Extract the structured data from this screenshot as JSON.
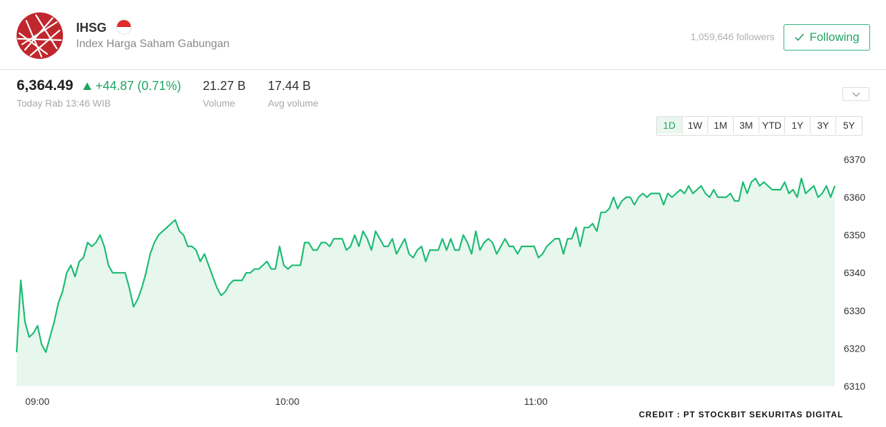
{
  "header": {
    "ticker": "IHSG",
    "flag": "indonesia-flag",
    "company_name": "Index Harga Saham Gabungan",
    "followers": "1,059,646 followers",
    "follow_button": "Following"
  },
  "quote": {
    "price": "6,364.49",
    "change": "+44.87 (0.71%)",
    "timestamp": "Today Rab 13:46 WIB",
    "volume_value": "21.27 B",
    "volume_label": "Volume",
    "avg_volume_value": "17.44 B",
    "avg_volume_label": "Avg volume"
  },
  "ranges": [
    "1D",
    "1W",
    "1M",
    "3M",
    "YTD",
    "1Y",
    "3Y",
    "5Y"
  ],
  "active_range": "1D",
  "credit": "CREDIT : PT STOCKBIT SEKURITAS DIGITAL",
  "colors": {
    "line": "#1dbb72",
    "fill": "#e7f7ee",
    "positive": "#1fa463",
    "logo": "#c0272d"
  },
  "chart_data": {
    "type": "area",
    "title": "",
    "xlabel": "",
    "ylabel": "",
    "xticks": [
      "09:00",
      "10:00",
      "11:00"
    ],
    "yticks": [
      6310,
      6320,
      6330,
      6340,
      6350,
      6360,
      6370
    ],
    "ylim": [
      6310,
      6373
    ],
    "x_start": "08:58",
    "x_end": "12:16",
    "grid": false,
    "y_axis_side": "right",
    "series": [
      {
        "values": [
          6319,
          6338,
          6327,
          6323,
          6324,
          6326,
          6321,
          6319,
          6323,
          6327,
          6332,
          6335,
          6340,
          6342,
          6339,
          6343,
          6344,
          6348,
          6347,
          6348,
          6350,
          6347,
          6342,
          6340,
          6340,
          6340,
          6340,
          6336,
          6331,
          6333,
          6336,
          6340,
          6345,
          6348,
          6350,
          6351,
          6352,
          6353,
          6354,
          6351,
          6350,
          6347,
          6347,
          6346,
          6343,
          6345,
          6342,
          6339,
          6336,
          6334,
          6335,
          6337,
          6338,
          6338,
          6338,
          6340,
          6340,
          6341,
          6341,
          6342,
          6343,
          6341,
          6341,
          6347,
          6342,
          6341,
          6342,
          6342,
          6342,
          6348,
          6348,
          6346,
          6346,
          6348,
          6348,
          6347,
          6349,
          6349,
          6349,
          6346,
          6347,
          6350,
          6347,
          6351,
          6349,
          6346,
          6351,
          6349,
          6347,
          6347,
          6349,
          6345,
          6347,
          6349,
          6345,
          6344,
          6346,
          6347,
          6343,
          6346,
          6346,
          6346,
          6349,
          6346,
          6349,
          6346,
          6346,
          6350,
          6348,
          6345,
          6351,
          6346,
          6348,
          6349,
          6348,
          6345,
          6347,
          6349,
          6347,
          6347,
          6345,
          6347,
          6347,
          6347,
          6347,
          6344,
          6345,
          6347,
          6348,
          6349,
          6349,
          6345,
          6349,
          6349,
          6352,
          6347,
          6352,
          6352,
          6353,
          6351,
          6356,
          6356,
          6357,
          6360,
          6357,
          6359,
          6360,
          6360,
          6358,
          6360,
          6361,
          6360,
          6361,
          6361,
          6361,
          6358,
          6361,
          6360,
          6361,
          6362,
          6361,
          6363,
          6361,
          6362,
          6363,
          6361,
          6360,
          6362,
          6360,
          6360,
          6360,
          6361,
          6359,
          6359,
          6364,
          6361,
          6364,
          6365,
          6363,
          6364,
          6363,
          6362,
          6362,
          6362,
          6364,
          6361,
          6362,
          6360,
          6365,
          6361,
          6362,
          6363,
          6360,
          6361,
          6363,
          6360,
          6363
        ]
      }
    ]
  }
}
